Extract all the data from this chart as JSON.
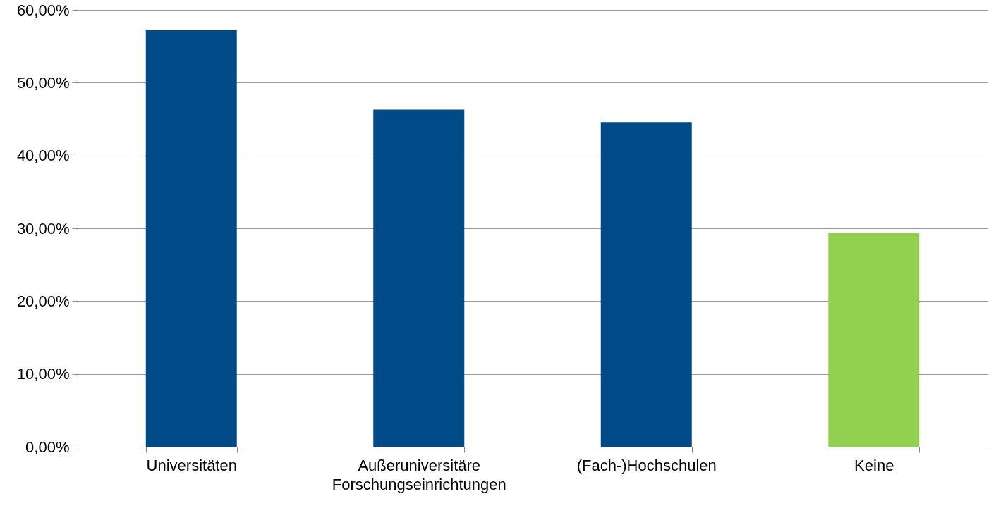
{
  "chart_data": {
    "type": "bar",
    "categories": [
      "Universitäten",
      "Außeruniversitäre Forschungseinrichtungen",
      "(Fach-)Hochschulen",
      "Keine"
    ],
    "values": [
      57.2,
      46.3,
      44.6,
      29.4
    ],
    "colors": [
      "#004b87",
      "#004b87",
      "#004b87",
      "#92d050"
    ],
    "ylim": [
      0,
      60
    ],
    "yticks": [
      {
        "value": 0,
        "label": "0,00%"
      },
      {
        "value": 10,
        "label": "10,00%"
      },
      {
        "value": 20,
        "label": "20,00%"
      },
      {
        "value": 30,
        "label": "30,00%"
      },
      {
        "value": 40,
        "label": "40,00%"
      },
      {
        "value": 50,
        "label": "50,00%"
      },
      {
        "value": 60,
        "label": "60,00%"
      }
    ],
    "grid": "y"
  }
}
